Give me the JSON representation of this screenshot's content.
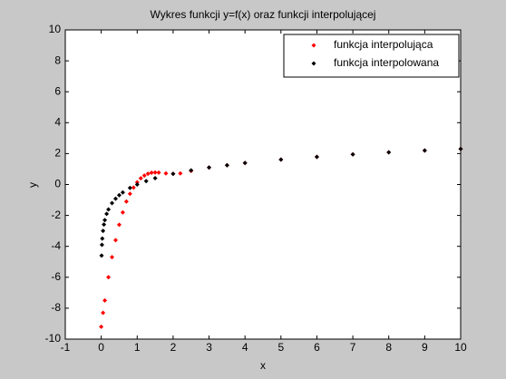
{
  "chart_data": {
    "type": "scatter",
    "title": "Wykres funkcji y=f(x) oraz funkcji interpolującej",
    "xlabel": "x",
    "ylabel": "y",
    "xlim": [
      -1,
      10
    ],
    "ylim": [
      -10,
      10
    ],
    "xticks": [
      -1,
      0,
      1,
      2,
      3,
      4,
      5,
      6,
      7,
      8,
      9,
      10
    ],
    "yticks": [
      -10,
      -8,
      -6,
      -4,
      -2,
      0,
      2,
      4,
      6,
      8,
      10
    ],
    "grid": false,
    "legend": "upper right",
    "series": [
      {
        "name": "funkcja interpolująca",
        "color": "#ff0000",
        "x": [
          0,
          0.05,
          0.1,
          0.2,
          0.3,
          0.4,
          0.5,
          0.6,
          0.7,
          0.8,
          0.9,
          1.0,
          1.1,
          1.2,
          1.3,
          1.4,
          1.5,
          1.6,
          1.8,
          2.0,
          2.2,
          2.5,
          3,
          3.5,
          4,
          5,
          6,
          7,
          8,
          9,
          10
        ],
        "values": [
          -9.2,
          -8.3,
          -7.5,
          -6.0,
          -4.7,
          -3.6,
          -2.6,
          -1.8,
          -1.1,
          -0.6,
          -0.2,
          0.15,
          0.4,
          0.58,
          0.7,
          0.76,
          0.78,
          0.77,
          0.72,
          0.7,
          0.72,
          0.88,
          1.1,
          1.25,
          1.39,
          1.61,
          1.79,
          1.95,
          2.08,
          2.2,
          2.3
        ]
      },
      {
        "name": "funkcja interpolowana",
        "color": "#000000",
        "x": [
          0.01,
          0.02,
          0.03,
          0.05,
          0.075,
          0.1,
          0.15,
          0.2,
          0.3,
          0.4,
          0.5,
          0.6,
          0.8,
          1,
          1.25,
          1.5,
          2,
          2.5,
          3,
          3.5,
          4,
          5,
          6,
          7,
          8,
          9,
          10
        ],
        "values": [
          -4.6,
          -3.9,
          -3.5,
          -3.0,
          -2.59,
          -2.3,
          -1.9,
          -1.61,
          -1.2,
          -0.92,
          -0.69,
          -0.51,
          -0.22,
          0,
          0.22,
          0.41,
          0.69,
          0.92,
          1.1,
          1.25,
          1.39,
          1.61,
          1.79,
          1.95,
          2.08,
          2.2,
          2.3
        ]
      }
    ]
  }
}
